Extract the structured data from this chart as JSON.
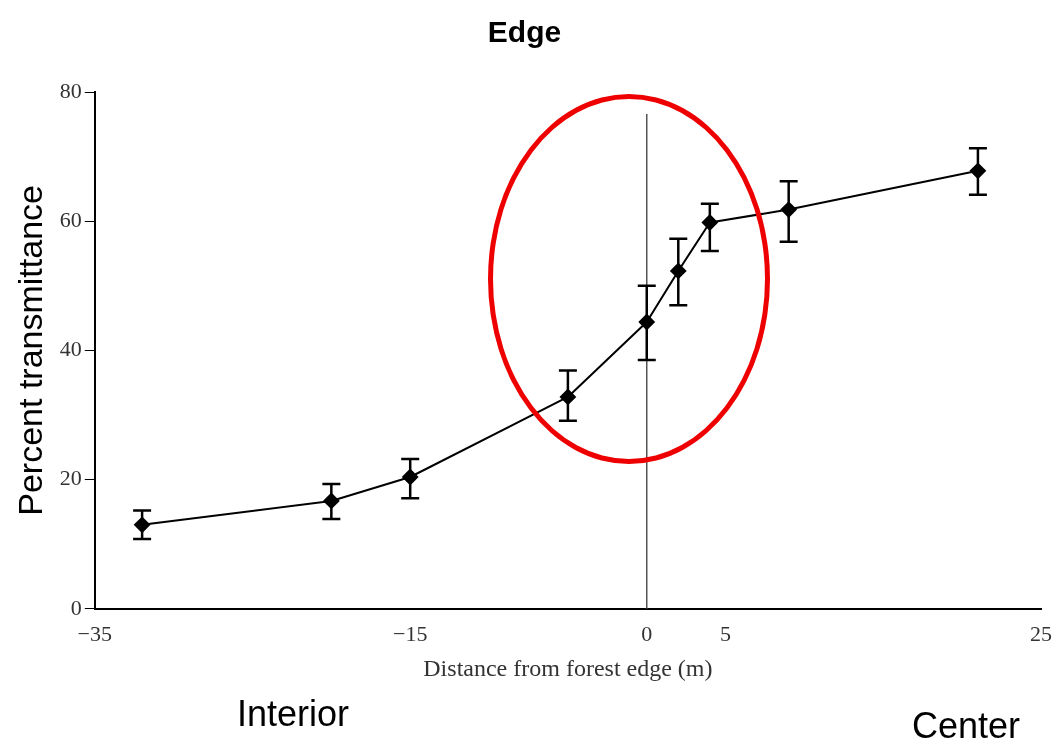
{
  "chart_data": {
    "type": "line",
    "title": "Edge",
    "xlabel": "Distance from forest edge (m)",
    "ylabel": "Percent transmittance",
    "x": [
      -32,
      -20,
      -15,
      -5,
      0,
      2,
      4,
      9,
      21
    ],
    "series": [
      {
        "color": "#000000",
        "values": [
          13,
          16.7,
          20.4,
          32.8,
          44.4,
          52.3,
          59.8,
          61.8,
          67.8
        ],
        "errors": [
          [
            10.8,
            15.2
          ],
          [
            13.9,
            19.3
          ],
          [
            17.1,
            23.2
          ],
          [
            29.1,
            36.9
          ],
          [
            38.5,
            50
          ],
          [
            47,
            57.3
          ],
          [
            55.4,
            62.7
          ],
          [
            56.8,
            66.2
          ],
          [
            64.1,
            71.3
          ]
        ]
      }
    ],
    "xlim": [
      -35,
      25
    ],
    "xticks": [
      -35,
      -15,
      0,
      5,
      25
    ],
    "ylim": [
      0,
      80
    ],
    "yticks": [
      0,
      20,
      40,
      60,
      80
    ],
    "ref_lines": [
      {
        "axis": "x",
        "value": 0,
        "color": "#555555"
      }
    ],
    "annotations": [
      "Interior",
      "Center"
    ],
    "marker": "diamond",
    "line_style": "solid",
    "grid": false,
    "legend": false
  }
}
